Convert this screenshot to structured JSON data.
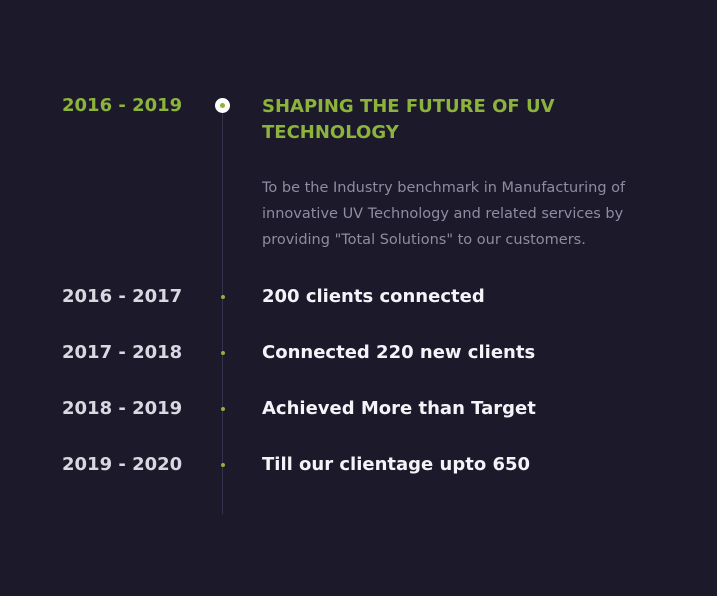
{
  "featured": {
    "period": "2016 - 2019",
    "heading": "SHAPING THE FUTURE OF UV TECHNOLOGY",
    "description": "To be the Industry benchmark in Manufacturing of innovative UV Technology and related services by providing \"Total Solutions\" to our customers."
  },
  "milestones": [
    {
      "period": "2016 - 2017",
      "title": "200 clients connected"
    },
    {
      "period": "2017 - 2018",
      "title": "Connected 220 new clients"
    },
    {
      "period": "2018 - 2019",
      "title": "Achieved More than Target"
    },
    {
      "period": "2019 - 2020",
      "title": "Till our clientage upto 650"
    }
  ],
  "colors": {
    "background": "#1c192b",
    "accent": "#8cb33b",
    "text_primary": "#f4f3f8",
    "text_muted": "#8f8ca1",
    "line": "#34314a"
  }
}
